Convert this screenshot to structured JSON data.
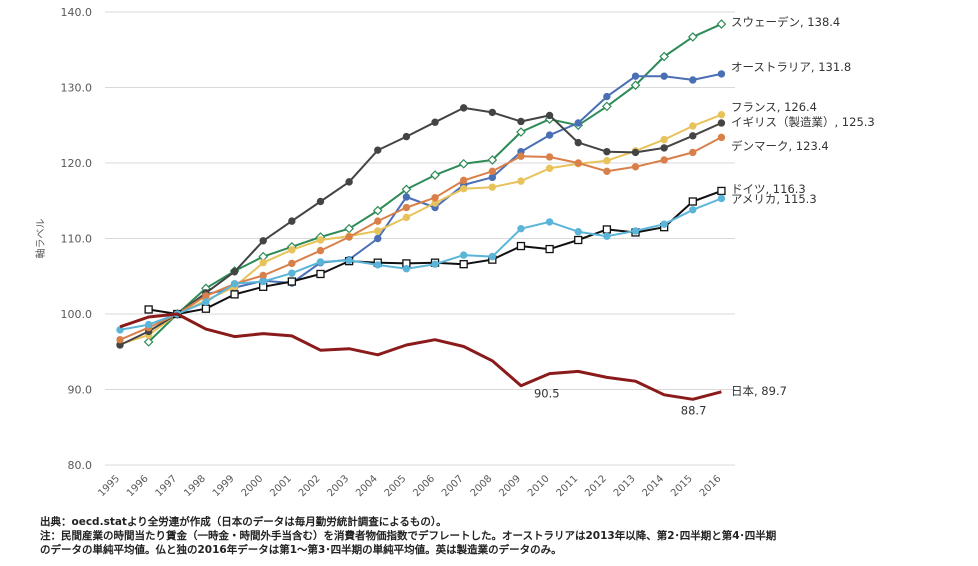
{
  "chart_data": {
    "type": "line",
    "ylabel": "軸ラベル",
    "ylim": [
      80,
      140
    ],
    "yticks": [
      "140.0",
      "130.0",
      "120.0",
      "110.0",
      "100.0",
      "90.0",
      "80.0"
    ],
    "categories": [
      "1995",
      "1996",
      "1997",
      "1998",
      "1999",
      "2000",
      "2001",
      "2002",
      "2003",
      "2004",
      "2005",
      "2006",
      "2007",
      "2008",
      "2009",
      "2010",
      "2011",
      "2012",
      "2013",
      "2014",
      "2015",
      "2016"
    ],
    "series": [
      {
        "name": "sweden",
        "label": "スウェーデン, 138.4",
        "color": "#2e8b57",
        "marker": "diamond",
        "values": [
          null,
          96.3,
          100,
          103.4,
          105.7,
          107.6,
          108.9,
          110.2,
          111.3,
          113.7,
          116.5,
          118.4,
          119.9,
          120.4,
          124.1,
          125.8,
          125.0,
          127.5,
          130.3,
          134.1,
          136.7,
          138.4
        ]
      },
      {
        "name": "australia",
        "label": "オーストラリア, 131.8",
        "color": "#4a6fb5",
        "marker": "circle",
        "values": [
          null,
          null,
          100,
          102.6,
          103.5,
          104.4,
          104.1,
          106.8,
          107.2,
          110.0,
          115.5,
          114.1,
          117.1,
          118.1,
          121.5,
          123.7,
          125.3,
          128.8,
          131.5,
          131.5,
          131.0,
          131.8
        ]
      },
      {
        "name": "france",
        "label": "フランス, 126.4",
        "color": "#e8c25a",
        "marker": "circle",
        "values": [
          96.0,
          97.2,
          100,
          101.8,
          103.6,
          106.8,
          108.5,
          109.8,
          110.3,
          111.0,
          112.8,
          114.7,
          116.6,
          116.8,
          117.6,
          119.3,
          119.9,
          120.3,
          121.6,
          123.1,
          124.9,
          126.4
        ]
      },
      {
        "name": "uk",
        "label": "イギリス（製造業）, 125.3",
        "color": "#444444",
        "marker": "circle",
        "values": [
          95.9,
          97.7,
          100,
          102.8,
          105.6,
          109.7,
          112.3,
          114.9,
          117.5,
          121.7,
          123.5,
          125.4,
          127.3,
          126.7,
          125.5,
          126.3,
          122.7,
          121.5,
          121.4,
          122.0,
          123.6,
          125.3
        ]
      },
      {
        "name": "denmark",
        "label": "デンマーク, 123.4",
        "color": "#d9804a",
        "marker": "circle",
        "values": [
          96.6,
          98.2,
          100,
          102.4,
          104.0,
          105.1,
          106.7,
          108.4,
          110.2,
          112.3,
          114.1,
          115.4,
          117.7,
          118.9,
          120.9,
          120.8,
          120.0,
          118.9,
          119.5,
          120.4,
          121.4,
          123.4
        ]
      },
      {
        "name": "germany",
        "label": "ドイツ, 116.3",
        "color": "#111111",
        "marker": "square",
        "values": [
          null,
          100.6,
          100,
          100.7,
          102.6,
          103.6,
          104.3,
          105.3,
          107.0,
          106.8,
          106.7,
          106.8,
          106.6,
          107.2,
          109.0,
          108.6,
          109.8,
          111.2,
          110.8,
          111.5,
          114.9,
          116.3
        ]
      },
      {
        "name": "usa",
        "label": "アメリカ, 115.3",
        "color": "#5bb5d9",
        "marker": "circle",
        "values": [
          97.9,
          98.6,
          100,
          101.6,
          104.0,
          104.3,
          105.4,
          106.9,
          107.1,
          106.5,
          106.0,
          106.6,
          107.8,
          107.6,
          111.3,
          112.2,
          110.9,
          110.3,
          111.0,
          111.9,
          113.8,
          115.3
        ]
      },
      {
        "name": "japan",
        "label": "日本, 89.7",
        "color": "#8b1a1a",
        "marker": "none",
        "values": [
          98.3,
          99.6,
          100,
          98.0,
          97.0,
          97.4,
          97.1,
          95.2,
          95.4,
          94.6,
          95.9,
          96.6,
          95.7,
          93.8,
          90.5,
          92.1,
          92.4,
          91.6,
          91.1,
          89.3,
          88.7,
          89.7
        ]
      }
    ],
    "annotations": [
      {
        "text": "90.5",
        "year": "2009",
        "value": 90.5
      },
      {
        "text": "88.7",
        "year": "2015",
        "value": 88.7
      }
    ]
  },
  "notes": {
    "line1": "出典：oecd.statより全労連が作成（日本のデータは毎月勤労統計調査によるもの）。",
    "line2": "注：民間産業の時間当たり賃金（一時金・時間外手当含む）を消費者物価指数でデフレートした。オーストラリアは2013年以降、第2･四半期と第4･四半期",
    "line3": "のデータの単純平均値。仏と独の2016年データは第1～第3･四半期の単純平均値。英は製造業のデータのみ。"
  }
}
